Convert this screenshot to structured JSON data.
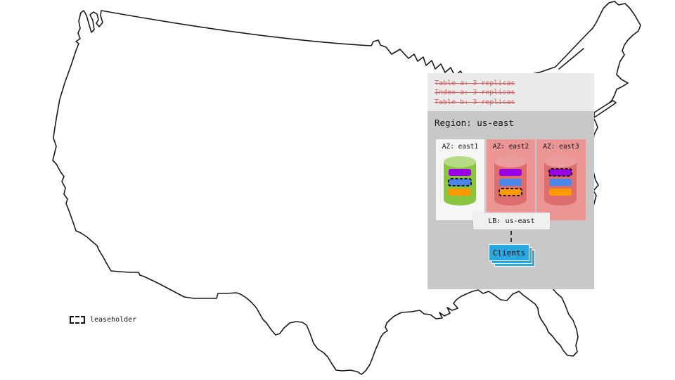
{
  "diagram": {
    "policies": [
      "Table a: 3 replicas",
      "Index a: 3 replicas",
      "Table b: 3 replicas"
    ],
    "region": {
      "title": "Region: us-east",
      "azs": [
        {
          "label": "AZ: east1",
          "variant": "light",
          "cylinder": "green",
          "replicas": [
            {
              "color": "purple",
              "leaseholder": false
            },
            {
              "color": "blue",
              "leaseholder": true
            },
            {
              "color": "orange",
              "leaseholder": false
            }
          ]
        },
        {
          "label": "AZ: east2",
          "variant": "pink",
          "cylinder": "red",
          "replicas": [
            {
              "color": "purple",
              "leaseholder": false
            },
            {
              "color": "blue",
              "leaseholder": false
            },
            {
              "color": "orange",
              "leaseholder": true
            }
          ]
        },
        {
          "label": "AZ: east3",
          "variant": "pink",
          "cylinder": "red",
          "replicas": [
            {
              "color": "purple",
              "leaseholder": true
            },
            {
              "color": "blue",
              "leaseholder": false
            },
            {
              "color": "orange",
              "leaseholder": false
            }
          ]
        }
      ],
      "lb_label": "LB: us-east",
      "clients_label": "Clients"
    },
    "legend_label": "leaseholder"
  },
  "colors": {
    "policy_text": "#dd6060",
    "replica_purple": "#9900e6",
    "replica_blue": "#4a86e8",
    "replica_orange": "#ff9900",
    "az_light": "#f6f6f6",
    "az_pink": "#ec9595",
    "cylinder_green_body": "#8bc53f",
    "cylinder_green_top": "#b5db85",
    "cylinder_red_body": "#de6d6d",
    "cylinder_red_top": "#eb9d9d",
    "clients_blue": "#29a8e0",
    "map_stroke": "#1a1a1a"
  }
}
